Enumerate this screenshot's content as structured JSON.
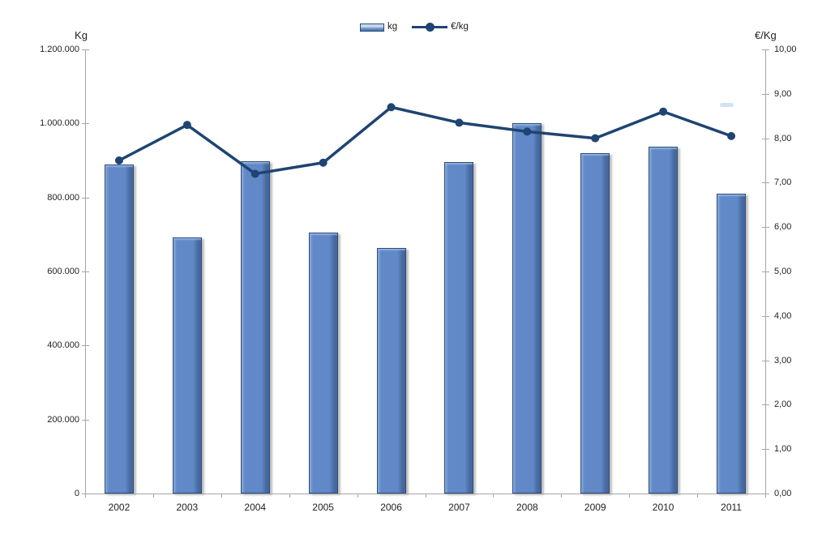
{
  "colors": {
    "background": "#FFFFFF",
    "bar_fill": "#6189C7",
    "bar_fill_light": "#8CACDA",
    "bar_fill_dark": "#46689C",
    "bar_border": "#2B4A79",
    "bar_top_highlight": "#9FBEE4",
    "line": "#1F4473",
    "axis": "#A6A6A6",
    "text": "#1F1F1F",
    "artifact": "#BAD3EC"
  },
  "chart_data": {
    "type": "combo-bar-line",
    "title": "",
    "categories": [
      "2002",
      "2003",
      "2004",
      "2005",
      "2006",
      "2007",
      "2008",
      "2009",
      "2010",
      "2011"
    ],
    "series": [
      {
        "name": "kg",
        "type": "bar",
        "axis": "left",
        "values": [
          889000,
          693000,
          897000,
          706000,
          664000,
          895000,
          1000000,
          920000,
          937000,
          810000
        ]
      },
      {
        "name": "€/kg",
        "type": "line",
        "axis": "right",
        "values": [
          7.5,
          8.3,
          7.2,
          7.45,
          8.7,
          8.35,
          8.15,
          8.0,
          8.6,
          8.05
        ]
      }
    ],
    "left_axis": {
      "title": "Kg",
      "min": 0,
      "max": 1200000,
      "step": 200000,
      "tick_labels": [
        "0",
        "200.000",
        "400.000",
        "600.000",
        "800.000",
        "1.000.000",
        "1.200.000"
      ]
    },
    "right_axis": {
      "title": "€/Kg",
      "min": 0,
      "max": 10,
      "step": 1,
      "tick_labels": [
        "0,00",
        "1,00",
        "2,00",
        "3,00",
        "4,00",
        "5,00",
        "6,00",
        "7,00",
        "8,00",
        "9,00",
        "10,00"
      ]
    },
    "grid": false,
    "legend_position": "top-center"
  }
}
